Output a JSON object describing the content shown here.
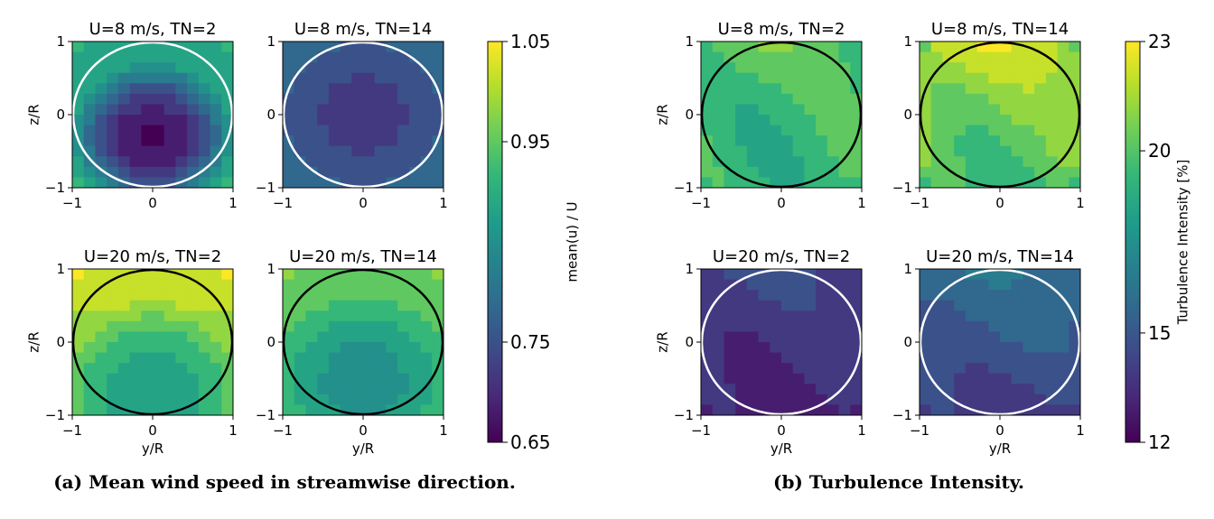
{
  "colormap": [
    "#440154",
    "#482878",
    "#3e4989",
    "#31688e",
    "#26828e",
    "#1f9e89",
    "#35b779",
    "#6ece58",
    "#b5de2b",
    "#fde725"
  ],
  "chart_data": [
    {
      "type": "heatmap",
      "caption": "(a) Mean wind speed in streamwise direction.",
      "xlabel": "y/R",
      "ylabel": "z/R",
      "xlim": [
        -1,
        1
      ],
      "ylim": [
        -1,
        1
      ],
      "xticks": [
        "−1",
        "0",
        "1"
      ],
      "yticks": [
        "−1",
        "0",
        "1"
      ],
      "colorbar": {
        "label": "mean(u) / U",
        "range": [
          0.65,
          1.05
        ],
        "ticks": [
          {
            "value": 1.05,
            "label": "1.05"
          },
          {
            "value": 0.95,
            "label": "0.95"
          },
          {
            "value": 0.75,
            "label": "0.75"
          },
          {
            "value": 0.65,
            "label": "0.65"
          }
        ]
      },
      "panels": [
        {
          "title": "U=8 m/s, TN=2",
          "rotor_circle_color": "#ffffff",
          "field": {
            "center": 0.66,
            "edge": 0.88,
            "corner": 0.9,
            "cy": -0.3,
            "top": 0.0
          }
        },
        {
          "title": "U=8 m/s, TN=14",
          "rotor_circle_color": "#ffffff",
          "field": {
            "center": 0.72,
            "edge": 0.77,
            "corner": 0.79,
            "cy": 0.0,
            "top": 0.0
          }
        },
        {
          "title": "U=20 m/s, TN=2",
          "rotor_circle_color": "#000000",
          "field": {
            "center": 0.9,
            "edge": 0.98,
            "corner": 1.0,
            "cy": -0.4,
            "top": 0.05
          }
        },
        {
          "title": "U=20 m/s, TN=14",
          "rotor_circle_color": "#000000",
          "field": {
            "center": 0.86,
            "edge": 0.93,
            "corner": 0.95,
            "cy": -0.3,
            "top": 0.03
          }
        }
      ]
    },
    {
      "type": "heatmap",
      "caption": "(b) Turbulence Intensity.",
      "xlabel": "y/R",
      "ylabel": "z/R",
      "xlim": [
        -1,
        1
      ],
      "ylim": [
        -1,
        1
      ],
      "xticks": [
        "−1",
        "0",
        "1"
      ],
      "yticks": [
        "−1",
        "0",
        "1"
      ],
      "colorbar": {
        "label": "Turbulence Intensity [%]",
        "range": [
          12,
          23
        ],
        "ticks": [
          {
            "value": 23,
            "label": "23"
          },
          {
            "value": 20,
            "label": "20"
          },
          {
            "value": 15,
            "label": "15"
          },
          {
            "value": 12,
            "label": "12"
          }
        ]
      },
      "panels": [
        {
          "title": "U=8 m/s, TN=2",
          "rotor_circle_color": "#000000",
          "field": {
            "center": 19.2,
            "edge": 19.8,
            "corner": 19.5,
            "cy": 0.0,
            "top": 0.5,
            "wave": 0.6
          }
        },
        {
          "title": "U=8 m/s, TN=14",
          "rotor_circle_color": "#000000",
          "field": {
            "center": 20.5,
            "edge": 21.0,
            "corner": 20.0,
            "cy": 0.0,
            "top": 1.2,
            "wave": 0.6
          }
        },
        {
          "title": "U=20 m/s, TN=2",
          "rotor_circle_color": "#ffffff",
          "field": {
            "center": 13.6,
            "edge": 13.8,
            "corner": 13.4,
            "cy": 0.0,
            "top": 0.6,
            "wave": 0.4
          }
        },
        {
          "title": "U=20 m/s, TN=14",
          "rotor_circle_color": "#ffffff",
          "field": {
            "center": 15.0,
            "edge": 15.0,
            "corner": 14.8,
            "cy": 0.0,
            "top": 1.0,
            "wave": 0.4
          }
        }
      ]
    }
  ]
}
